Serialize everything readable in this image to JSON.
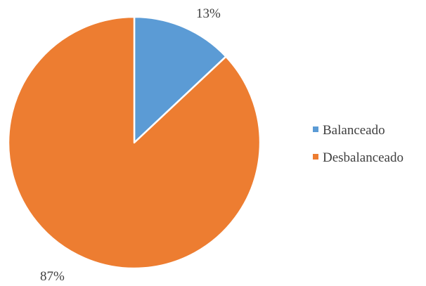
{
  "chart_data": {
    "type": "pie",
    "title": "",
    "categories": [
      "Balanceado",
      "Desbalanceado"
    ],
    "values": [
      13,
      87
    ],
    "value_labels": [
      "13%",
      "87%"
    ],
    "colors": [
      "#5b9bd5",
      "#ed7d31"
    ],
    "start_angle": "12 o'clock",
    "direction": "clockwise",
    "legend_position": "right"
  }
}
